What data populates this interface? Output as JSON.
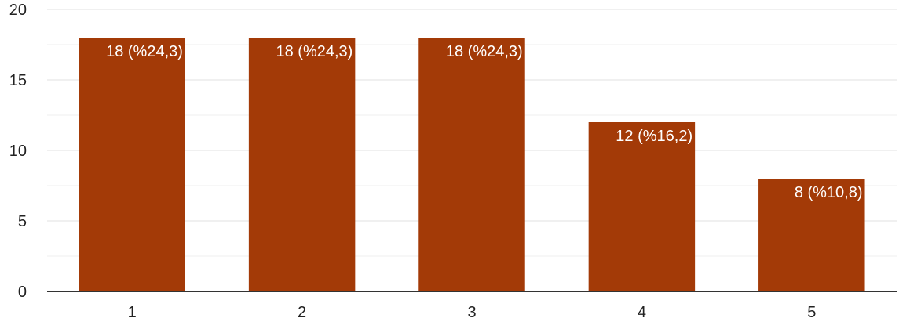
{
  "chart_data": {
    "type": "bar",
    "title": "",
    "xlabel": "",
    "ylabel": "",
    "categories": [
      "1",
      "2",
      "3",
      "4",
      "5"
    ],
    "values": [
      18,
      18,
      18,
      12,
      8
    ],
    "data_labels": [
      "18 (%24,3)",
      "18 (%24,3)",
      "18 (%24,3)",
      "12 (%16,2)",
      "8 (%10,8)"
    ],
    "ylim": [
      0,
      20
    ],
    "yticks": [
      "0",
      "5",
      "10",
      "15",
      "20"
    ],
    "grid": true,
    "bar_color": "#a33a07",
    "grid_color": "#e6e6e6",
    "axis_color": "#333333",
    "label_text_color": "#ffffff",
    "tick_text_color": "#222222"
  }
}
